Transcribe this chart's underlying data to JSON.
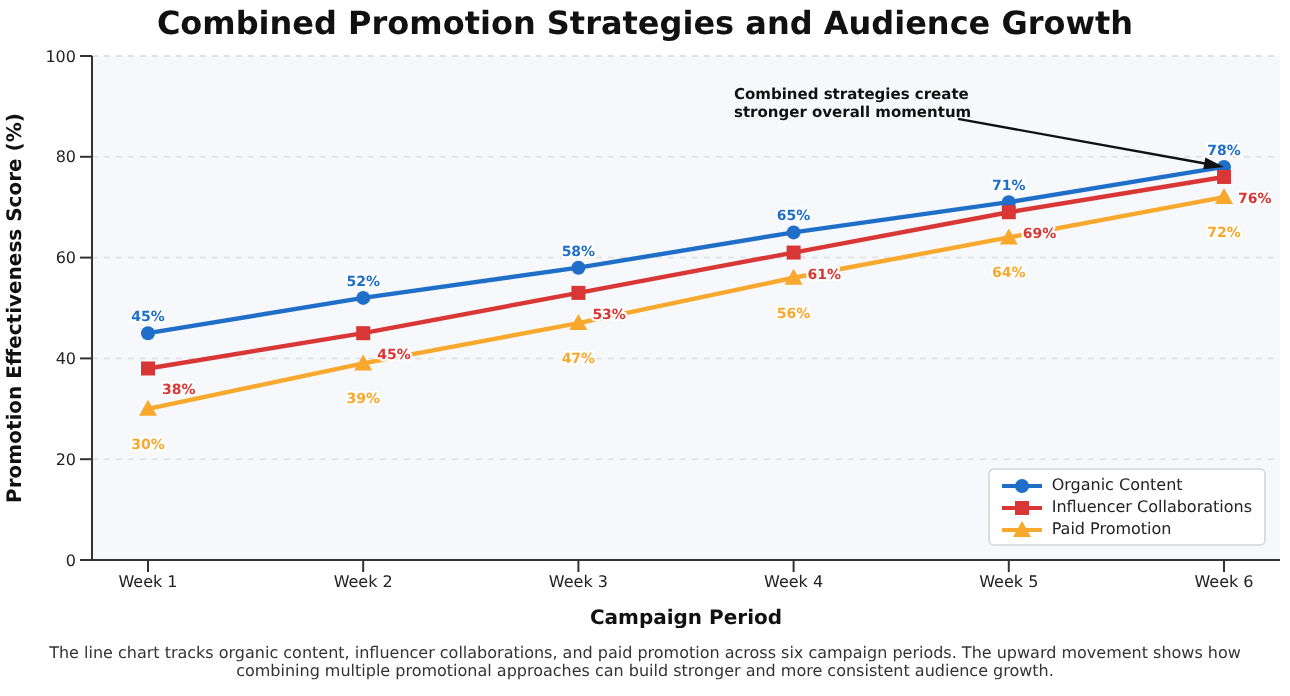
{
  "chart_data": {
    "type": "line",
    "title": "Combined Promotion Strategies and Audience Growth",
    "xlabel": "Campaign Period",
    "ylabel": "Promotion Effectiveness Score (%)",
    "categories": [
      "Week 1",
      "Week 2",
      "Week 3",
      "Week 4",
      "Week 5",
      "Week 6"
    ],
    "series": [
      {
        "name": "Organic Content",
        "color": "#1f6fc9",
        "marker": "circle",
        "values": [
          45,
          52,
          58,
          65,
          71,
          78
        ],
        "value_labels": [
          "45%",
          "52%",
          "58%",
          "65%",
          "71%",
          "78%"
        ]
      },
      {
        "name": "Influencer Collaborations",
        "color": "#d93636",
        "marker": "square",
        "values": [
          38,
          45,
          53,
          61,
          69,
          76
        ],
        "value_labels": [
          "38%",
          "45%",
          "53%",
          "61%",
          "69%",
          "76%"
        ]
      },
      {
        "name": "Paid Promotion",
        "color": "#f9a82e",
        "marker": "triangle",
        "values": [
          30,
          39,
          47,
          56,
          64,
          72
        ],
        "value_labels": [
          "30%",
          "39%",
          "47%",
          "56%",
          "64%",
          "72%"
        ]
      }
    ],
    "ylim": [
      0,
      100
    ],
    "yticks": [
      0,
      20,
      40,
      60,
      80,
      100
    ],
    "grid": "y",
    "legend": "bottom right",
    "line_style": "solid",
    "annotations": [
      {
        "text": "Combined strategies create\nstronger overall momentum",
        "x": "Week 6",
        "y": 78
      },
      "The line chart tracks organic content, influencer collaborations, and paid promotion across six campaign periods. The upward movement shows how combining multiple promotional approaches can build stronger and more consistent audience growth."
    ]
  }
}
